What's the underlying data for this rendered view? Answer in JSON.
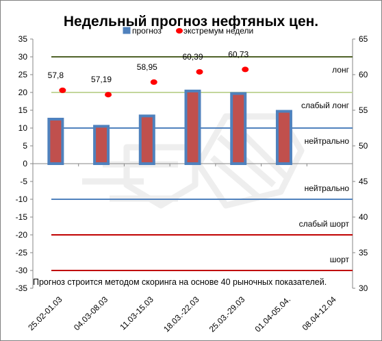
{
  "chart_data": {
    "type": "bar",
    "title": "Недельный прогноз нефтяных цен.",
    "categories": [
      "25.02-01.03",
      "04.03-08.03",
      "11.03-15.03",
      "18.03.-22.03",
      "25.03.-29.03",
      "01.04-05.04.",
      "08.04-12.04"
    ],
    "series": [
      {
        "name": "прогноз",
        "axis": "left",
        "values": [
          12.5,
          10.5,
          13.4,
          20.4,
          19.7,
          14.7,
          null
        ],
        "color": "#c0504d",
        "border_color": "#4f81bd"
      },
      {
        "name": "экстремум недели",
        "axis": "right",
        "type": "scatter",
        "values": [
          57.8,
          57.19,
          58.95,
          60.39,
          60.73,
          null,
          null
        ],
        "labels": [
          "57,8",
          "57,19",
          "58,95",
          "60,39",
          "60,73",
          "",
          ""
        ],
        "color": "#ff0000"
      }
    ],
    "y_left": {
      "lim": [
        -35,
        35
      ],
      "ticks": [
        35,
        30,
        25,
        20,
        15,
        10,
        5,
        0,
        -5,
        -10,
        -15,
        -20,
        -25,
        -30,
        -35
      ]
    },
    "y_right": {
      "lim": [
        30,
        65
      ],
      "ticks": [
        65,
        60,
        55,
        50,
        45,
        40,
        35,
        30
      ]
    },
    "reference_lines": [
      {
        "value": 30,
        "label": "лонг",
        "color": "#4f6228"
      },
      {
        "value": 20,
        "label": "слабый лонг",
        "color": "#c3d69b"
      },
      {
        "value": 10,
        "label": "нейтрально",
        "color": "#4f81bd"
      },
      {
        "value": -10,
        "label": "нейтрально",
        "color": "#4f81bd"
      },
      {
        "value": -20,
        "label": "слабый шорт",
        "color": "#c00000"
      },
      {
        "value": -30,
        "label": "шорт",
        "color": "#c00000"
      }
    ],
    "annotation": "Прогноз строится методом скоринга на основе  40 рыночных показателей.",
    "legend_position": "top",
    "grid": false
  }
}
